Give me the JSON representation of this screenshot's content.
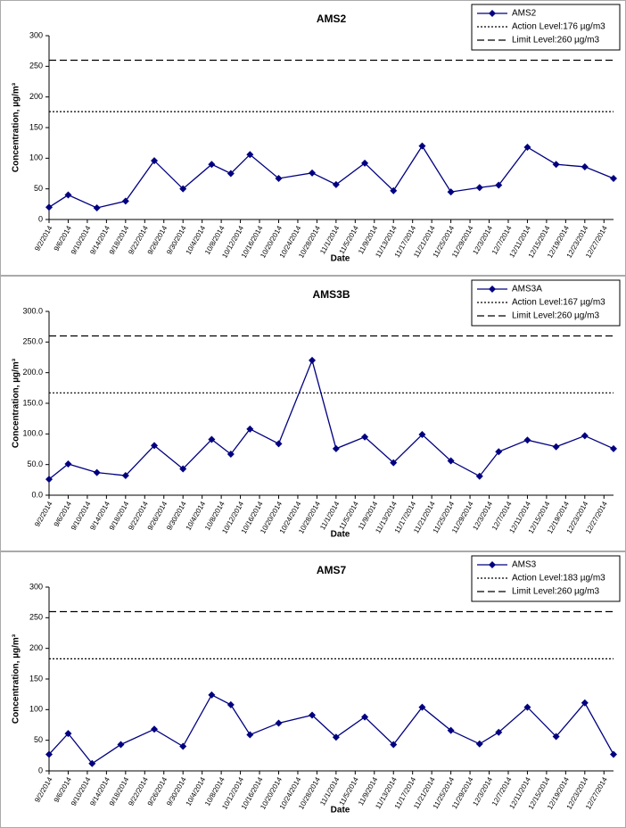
{
  "chart_data": [
    {
      "type": "line",
      "title": "AMS2",
      "ylabel": "Concentration, µg/m³",
      "xlabel": "Date",
      "x": [
        "9/2/2014",
        "9/6/2014",
        "9/12/2014",
        "9/18/2014",
        "9/24/2014",
        "9/30/2014",
        "10/6/2014",
        "10/10/2014",
        "10/14/2014",
        "10/20/2014",
        "10/27/2014",
        "11/1/2014",
        "11/7/2014",
        "11/13/2014",
        "11/19/2014",
        "11/25/2014",
        "12/1/2014",
        "12/5/2014",
        "12/11/2014",
        "12/17/2014",
        "12/23/2014",
        "12/29/2014"
      ],
      "series": [
        {
          "name": "AMS2",
          "color": "#000080",
          "values": [
            20,
            40,
            19,
            30,
            96,
            50,
            90,
            75,
            106,
            67,
            76,
            57,
            92,
            47,
            120,
            45,
            52,
            56,
            118,
            90,
            86,
            67
          ]
        }
      ],
      "hlines": [
        {
          "name": "Action Level:176 µg/m3",
          "value": 176,
          "style": "dotted"
        },
        {
          "name": "Limit Level:260 µg/m3",
          "value": 260,
          "style": "dashed"
        }
      ],
      "xlim": [
        "9/2/2014",
        "12/29/2014"
      ],
      "xticks": [
        "9/2/2014",
        "9/6/2014",
        "9/10/2014",
        "9/14/2014",
        "9/18/2014",
        "9/22/2014",
        "9/26/2014",
        "9/30/2014",
        "10/4/2014",
        "10/8/2014",
        "10/12/2014",
        "10/16/2014",
        "10/20/2014",
        "10/24/2014",
        "10/28/2014",
        "11/1/2014",
        "11/5/2014",
        "11/9/2014",
        "11/13/2014",
        "11/17/2014",
        "11/21/2014",
        "11/25/2014",
        "11/29/2014",
        "12/3/2014",
        "12/7/2014",
        "12/11/2014",
        "12/15/2014",
        "12/19/2014",
        "12/23/2014",
        "12/27/2014"
      ],
      "ylim": [
        0,
        300
      ],
      "yticks": [
        0,
        50,
        100,
        150,
        200,
        250,
        300
      ],
      "legend": "upper right"
    },
    {
      "type": "line",
      "title": "AMS3B",
      "ylabel": "Concentration, µg/m³",
      "xlabel": "Date",
      "x": [
        "9/2/2014",
        "9/6/2014",
        "9/12/2014",
        "9/18/2014",
        "9/24/2014",
        "9/30/2014",
        "10/6/2014",
        "10/10/2014",
        "10/14/2014",
        "10/20/2014",
        "10/27/2014",
        "11/1/2014",
        "11/7/2014",
        "11/13/2014",
        "11/19/2014",
        "11/25/2014",
        "12/1/2014",
        "12/5/2014",
        "12/11/2014",
        "12/17/2014",
        "12/23/2014",
        "12/29/2014"
      ],
      "series": [
        {
          "name": "AMS3A",
          "color": "#000080",
          "values": [
            26,
            51,
            37,
            32,
            81,
            43,
            91,
            67,
            108,
            84,
            220,
            76,
            95,
            53,
            99,
            56,
            31,
            71,
            90,
            79,
            97,
            76
          ]
        }
      ],
      "hlines": [
        {
          "name": "Action Level:167 µg/m3",
          "value": 167,
          "style": "dotted"
        },
        {
          "name": "Limit Level:260 µg/m3",
          "value": 260,
          "style": "dashed"
        }
      ],
      "xlim": [
        "9/2/2014",
        "12/29/2014"
      ],
      "xticks": [
        "9/2/2014",
        "9/6/2014",
        "9/10/2014",
        "9/14/2014",
        "9/18/2014",
        "9/22/2014",
        "9/26/2014",
        "9/30/2014",
        "10/4/2014",
        "10/8/2014",
        "10/12/2014",
        "10/16/2014",
        "10/20/2014",
        "10/24/2014",
        "10/28/2014",
        "11/1/2014",
        "11/5/2014",
        "11/9/2014",
        "11/13/2014",
        "11/17/2014",
        "11/21/2014",
        "11/25/2014",
        "11/29/2014",
        "12/3/2014",
        "12/7/2014",
        "12/11/2014",
        "12/15/2014",
        "12/19/2014",
        "12/23/2014",
        "12/27/2014"
      ],
      "ylim": [
        0,
        300
      ],
      "yticks": [
        {
          "value": 0,
          "label": "0.0"
        },
        {
          "value": 50,
          "label": "50.0"
        },
        {
          "value": 100,
          "label": "100.0"
        },
        {
          "value": 150,
          "label": "150.0"
        },
        {
          "value": 200,
          "label": "200.0"
        },
        {
          "value": 250,
          "label": "250.0"
        },
        {
          "value": 300,
          "label": "300.0"
        }
      ],
      "legend": "upper right"
    },
    {
      "type": "line",
      "title": "AMS7",
      "ylabel": "Concentration, µg/m³",
      "xlabel": "Date",
      "x": [
        "9/2/2014",
        "9/6/2014",
        "9/11/2014",
        "9/17/2014",
        "9/24/2014",
        "9/30/2014",
        "10/6/2014",
        "10/10/2014",
        "10/14/2014",
        "10/20/2014",
        "10/27/2014",
        "11/1/2014",
        "11/7/2014",
        "11/13/2014",
        "11/19/2014",
        "11/25/2014",
        "12/1/2014",
        "12/5/2014",
        "12/11/2014",
        "12/17/2014",
        "12/23/2014",
        "12/29/2014"
      ],
      "series": [
        {
          "name": "AMS3",
          "color": "#000080",
          "values": [
            27,
            61,
            12,
            43,
            68,
            40,
            124,
            108,
            59,
            78,
            91,
            55,
            88,
            43,
            104,
            66,
            44,
            63,
            104,
            56,
            111,
            27
          ]
        }
      ],
      "hlines": [
        {
          "name": "Action Level:183 µg/m3",
          "value": 183,
          "style": "dotted"
        },
        {
          "name": "Limit Level:260 µg/m3",
          "value": 260,
          "style": "dashed"
        }
      ],
      "xlim": [
        "9/2/2014",
        "12/29/2014"
      ],
      "xticks": [
        "9/2/2014",
        "9/6/2014",
        "9/10/2014",
        "9/14/2014",
        "9/18/2014",
        "9/22/2014",
        "9/26/2014",
        "9/30/2014",
        "10/4/2014",
        "10/8/2014",
        "10/12/2014",
        "10/16/2014",
        "10/20/2014",
        "10/24/2014",
        "10/28/2014",
        "11/1/2014",
        "11/5/2014",
        "11/9/2014",
        "11/13/2014",
        "11/17/2014",
        "11/21/2014",
        "11/25/2014",
        "11/29/2014",
        "12/3/2014",
        "12/7/2014",
        "12/11/2014",
        "12/15/2014",
        "12/19/2014",
        "12/23/2014",
        "12/27/2014"
      ],
      "ylim": [
        0,
        300
      ],
      "yticks": [
        0,
        50,
        100,
        150,
        200,
        250,
        300
      ],
      "legend": "upper right"
    }
  ]
}
